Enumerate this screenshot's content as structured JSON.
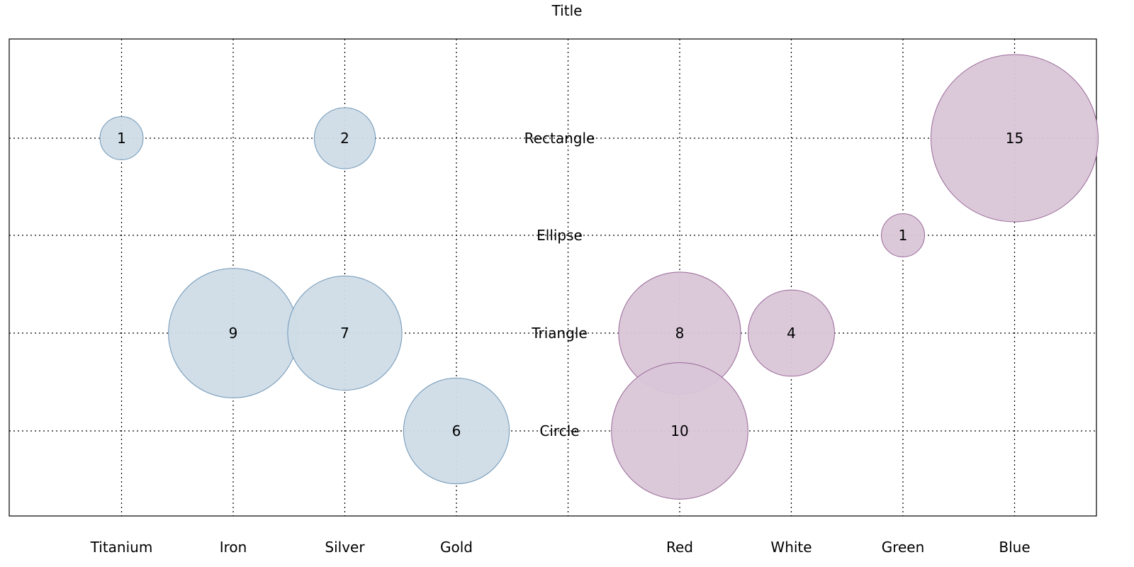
{
  "chart_data": {
    "type": "scatter",
    "subtype": "bubble",
    "title": "Title",
    "categories": [
      "Titanium",
      "Iron",
      "Silver",
      "Gold",
      "",
      "Red",
      "White",
      "Green",
      "Blue"
    ],
    "y_categories": [
      "Circle",
      "Triangle",
      "Ellipse",
      "Rectangle"
    ],
    "grid": true,
    "series": [
      {
        "color": "#cfdce6",
        "stroke": "#6f96b8",
        "points": [
          {
            "x": "Titanium",
            "y": "Rectangle",
            "value": 1
          },
          {
            "x": "Silver",
            "y": "Rectangle",
            "value": 2
          },
          {
            "x": "Iron",
            "y": "Triangle",
            "value": 9
          },
          {
            "x": "Silver",
            "y": "Triangle",
            "value": 7
          },
          {
            "x": "Gold",
            "y": "Circle",
            "value": 6
          }
        ]
      },
      {
        "color": "#d9c6d8",
        "stroke": "#9a6898",
        "points": [
          {
            "x": "Blue",
            "y": "Rectangle",
            "value": 15
          },
          {
            "x": "Green",
            "y": "Ellipse",
            "value": 1
          },
          {
            "x": "Red",
            "y": "Triangle",
            "value": 8
          },
          {
            "x": "White",
            "y": "Triangle",
            "value": 4
          },
          {
            "x": "Red",
            "y": "Circle",
            "value": 10
          }
        ]
      }
    ]
  }
}
